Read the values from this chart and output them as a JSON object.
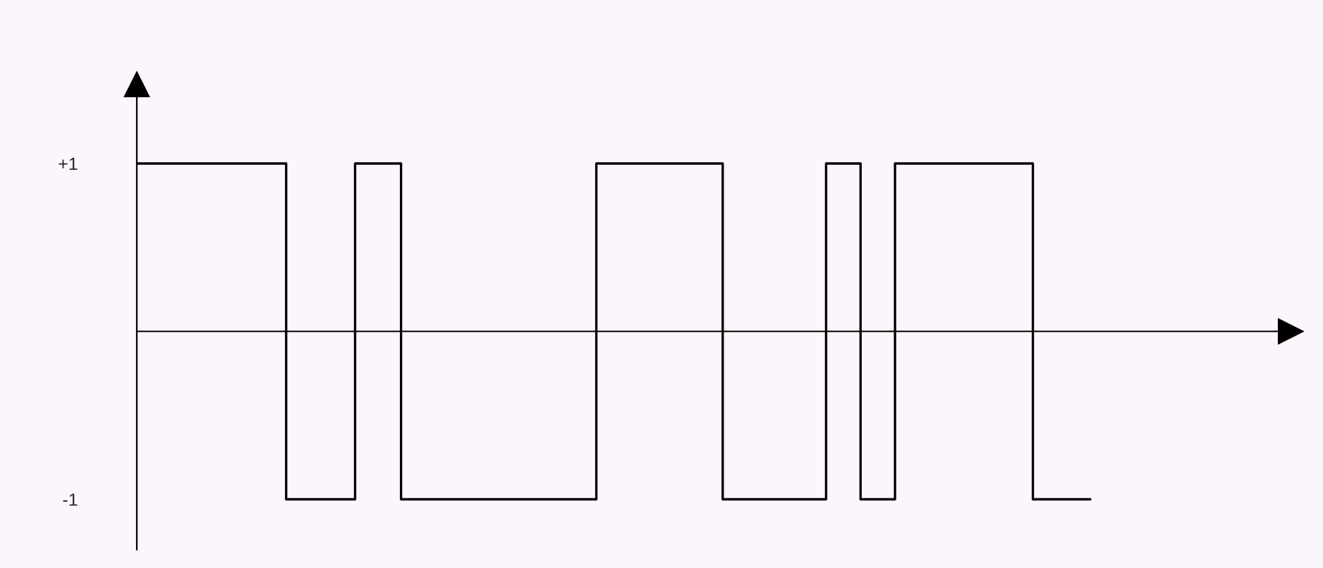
{
  "chart_data": {
    "type": "step",
    "categories": [
      null,
      null,
      null,
      null,
      null,
      null,
      null,
      null,
      null,
      null,
      null,
      null,
      null,
      null,
      null,
      null,
      null,
      null,
      null,
      null,
      null,
      null,
      null,
      null,
      null,
      null,
      null,
      null,
      null,
      null,
      null,
      null,
      null,
      null,
      null,
      null,
      null,
      null,
      null,
      null,
      null,
      null,
      null,
      null,
      null,
      null,
      null,
      null,
      null,
      null,
      null,
      null,
      null,
      null,
      null,
      null,
      null,
      null,
      null,
      null,
      null,
      null,
      null,
      null,
      null,
      null,
      null,
      null,
      null,
      null,
      null,
      null,
      null,
      null,
      null,
      null,
      null,
      null,
      null,
      null,
      null,
      null,
      null,
      null
    ],
    "series": [
      {
        "color": "#000000",
        "values": [
          1,
          1,
          1,
          1,
          1,
          1,
          1,
          1,
          1,
          1,
          1,
          1,
          1,
          -1,
          -1,
          -1,
          -1,
          -1,
          -1,
          1,
          1,
          1,
          1,
          -1,
          -1,
          -1,
          -1,
          -1,
          -1,
          -1,
          -1,
          -1,
          -1,
          -1,
          -1,
          -1,
          -1,
          -1,
          -1,
          -1,
          1,
          1,
          1,
          1,
          1,
          1,
          1,
          1,
          1,
          1,
          1,
          -1,
          -1,
          -1,
          -1,
          -1,
          -1,
          -1,
          -1,
          -1,
          1,
          1,
          1,
          -1,
          -1,
          -1,
          1,
          1,
          1,
          1,
          1,
          1,
          1,
          1,
          1,
          1,
          1,
          1,
          -1,
          -1,
          -1,
          -1,
          -1,
          -1
        ]
      }
    ],
    "ylim": [
      -1.3,
      1.47
    ],
    "yticks": [
      {
        "value": 1,
        "label": "+1"
      },
      {
        "value": -1,
        "label": "-1"
      }
    ],
    "tick_labels": "y",
    "grid": false,
    "legend": false
  }
}
